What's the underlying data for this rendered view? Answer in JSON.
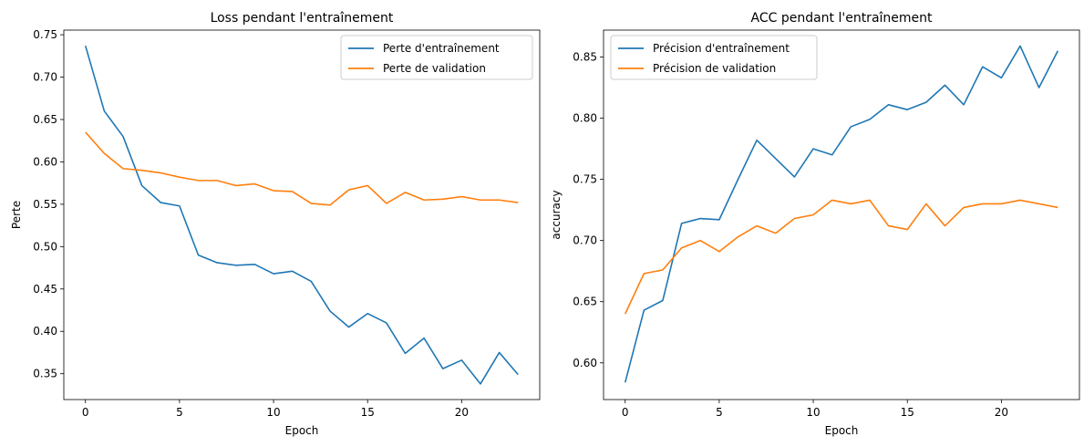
{
  "chart_data": [
    {
      "type": "line",
      "title": "Loss pendant l'entraînement",
      "xlabel": "Epoch",
      "ylabel": "Perte",
      "xlim": [
        -1.15,
        24.15
      ],
      "ylim": [
        0.3195,
        0.7555
      ],
      "xticks": [
        0,
        5,
        10,
        15,
        20
      ],
      "yticks": [
        0.35,
        0.4,
        0.45,
        0.5,
        0.55,
        0.6,
        0.65,
        0.7,
        0.75
      ],
      "x": [
        0,
        1,
        2,
        3,
        4,
        5,
        6,
        7,
        8,
        9,
        10,
        11,
        12,
        13,
        14,
        15,
        16,
        17,
        18,
        19,
        20,
        21,
        22,
        23
      ],
      "legend_position": "upper right",
      "series": [
        {
          "name": "Perte d'entraînement",
          "color": "#1f77b4",
          "values": [
            0.737,
            0.66,
            0.63,
            0.572,
            0.552,
            0.548,
            0.49,
            0.481,
            0.478,
            0.479,
            0.468,
            0.471,
            0.459,
            0.424,
            0.405,
            0.421,
            0.41,
            0.374,
            0.392,
            0.356,
            0.366,
            0.338,
            0.375,
            0.349
          ]
        },
        {
          "name": "Perte de validation",
          "color": "#ff7f0e",
          "values": [
            0.635,
            0.61,
            0.592,
            0.59,
            0.587,
            0.582,
            0.578,
            0.578,
            0.572,
            0.574,
            0.566,
            0.565,
            0.551,
            0.549,
            0.567,
            0.572,
            0.551,
            0.564,
            0.555,
            0.556,
            0.559,
            0.555,
            0.555,
            0.552
          ]
        }
      ]
    },
    {
      "type": "line",
      "title": "ACC pendant l'entraînement",
      "xlabel": "Epoch",
      "ylabel": "accuracy",
      "xlim": [
        -1.15,
        24.15
      ],
      "ylim": [
        0.57,
        0.872
      ],
      "xticks": [
        0,
        5,
        10,
        15,
        20
      ],
      "yticks": [
        0.6,
        0.65,
        0.7,
        0.75,
        0.8,
        0.85
      ],
      "x": [
        0,
        1,
        2,
        3,
        4,
        5,
        6,
        7,
        8,
        9,
        10,
        11,
        12,
        13,
        14,
        15,
        16,
        17,
        18,
        19,
        20,
        21,
        22,
        23
      ],
      "legend_position": "upper left",
      "series": [
        {
          "name": "Précision d'entraînement",
          "color": "#1f77b4",
          "values": [
            0.584,
            0.643,
            0.651,
            0.714,
            0.718,
            0.717,
            0.75,
            0.782,
            0.767,
            0.752,
            0.775,
            0.77,
            0.793,
            0.799,
            0.811,
            0.807,
            0.813,
            0.827,
            0.811,
            0.842,
            0.833,
            0.859,
            0.825,
            0.855
          ]
        },
        {
          "name": "Précision de validation",
          "color": "#ff7f0e",
          "values": [
            0.64,
            0.673,
            0.676,
            0.694,
            0.7,
            0.691,
            0.703,
            0.712,
            0.706,
            0.718,
            0.721,
            0.733,
            0.73,
            0.733,
            0.712,
            0.709,
            0.73,
            0.712,
            0.727,
            0.73,
            0.73,
            0.733,
            0.73,
            0.727
          ]
        }
      ]
    }
  ]
}
